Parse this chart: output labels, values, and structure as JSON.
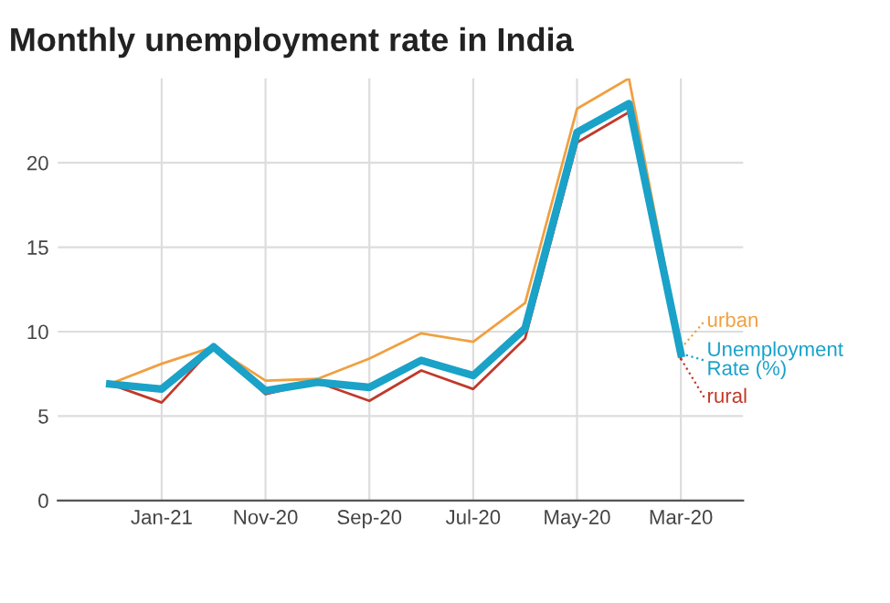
{
  "chart_data": {
    "type": "line",
    "title": "Monthly unemployment rate in India",
    "categories": [
      null,
      "Jan-21",
      null,
      "Nov-20",
      null,
      "Sep-20",
      null,
      "Jul-20",
      null,
      "May-20",
      null,
      "Mar-20"
    ],
    "series": [
      {
        "name": "urban",
        "color": "#f0a040",
        "values": [
          6.9,
          8.1,
          9.1,
          7.1,
          7.2,
          8.4,
          9.9,
          9.4,
          11.7,
          23.2,
          25.0,
          9.0
        ]
      },
      {
        "name": "rural",
        "color": "#c0392b",
        "values": [
          6.9,
          5.8,
          9.1,
          6.3,
          7.0,
          5.9,
          7.7,
          6.6,
          9.6,
          21.2,
          23.0,
          8.4
        ]
      },
      {
        "name": "Unemployment Rate (%)",
        "color": "#1aa2c8",
        "values": [
          6.9,
          6.6,
          9.1,
          6.5,
          7.0,
          6.7,
          8.3,
          7.4,
          10.2,
          21.8,
          23.5,
          8.7
        ]
      }
    ],
    "ylim": [
      0,
      25
    ],
    "yticks": [
      0,
      5,
      10,
      15,
      20
    ],
    "grid": true,
    "legend": "right",
    "marker": "none",
    "line_style": "solid"
  }
}
